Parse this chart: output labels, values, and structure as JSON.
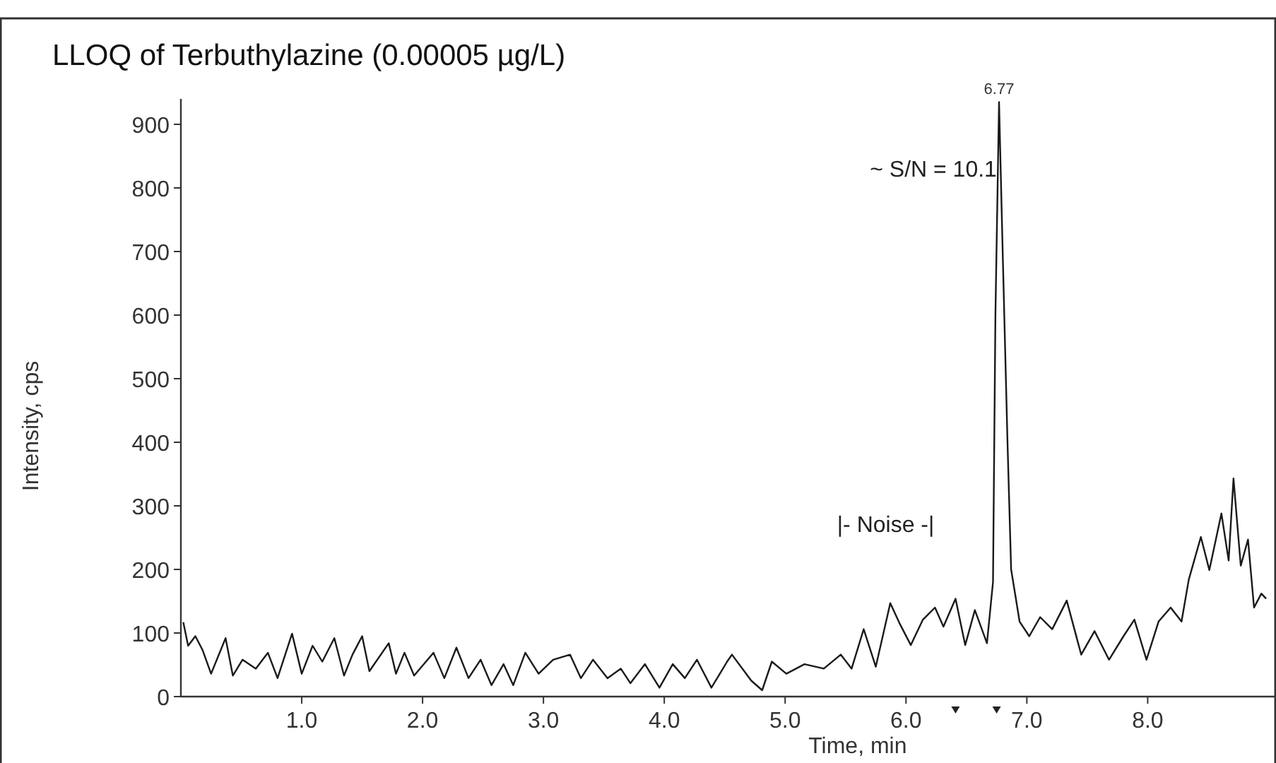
{
  "chart_data": {
    "type": "line",
    "title": "LLOQ of Terbuthylazine (0.00005 µg/L)",
    "xlabel": "Time, min",
    "ylabel": "Intensity, cps",
    "xlim": [
      0,
      9.05
    ],
    "ylim": [
      0,
      940
    ],
    "xticks": [
      {
        "value": 1,
        "label": "1.0"
      },
      {
        "value": 2,
        "label": "2.0"
      },
      {
        "value": 3,
        "label": "3.0"
      },
      {
        "value": 4,
        "label": "4.0"
      },
      {
        "value": 5,
        "label": "5.0"
      },
      {
        "value": 6,
        "label": "6.0"
      },
      {
        "value": 7,
        "label": "7.0"
      },
      {
        "value": 8,
        "label": "8.0"
      }
    ],
    "yticks": [
      0,
      100,
      200,
      300,
      400,
      500,
      600,
      700,
      800,
      900
    ],
    "marker": "none",
    "line_style": "solid",
    "annotations": [
      {
        "text": "6.77",
        "x": 6.77,
        "y": 935
      },
      "~ S/N = 10.1",
      "|- Noise -|"
    ],
    "series": [
      {
        "color": "#1a1a1a",
        "x": [
          0.02,
          0.06,
          0.12,
          0.18,
          0.25,
          0.37,
          0.43,
          0.51,
          0.62,
          0.72,
          0.8,
          0.92,
          1.0,
          1.09,
          1.17,
          1.27,
          1.35,
          1.42,
          1.5,
          1.56,
          1.72,
          1.78,
          1.85,
          1.93,
          2.09,
          2.18,
          2.28,
          2.38,
          2.48,
          2.57,
          2.67,
          2.75,
          2.85,
          2.96,
          3.08,
          3.22,
          3.31,
          3.41,
          3.53,
          3.64,
          3.72,
          3.84,
          3.96,
          4.07,
          4.17,
          4.27,
          4.39,
          4.52,
          4.56,
          4.72,
          4.81,
          4.89,
          5.01,
          5.16,
          5.32,
          5.46,
          5.55,
          5.65,
          5.75,
          5.87,
          5.95,
          6.04,
          6.14,
          6.24,
          6.31,
          6.41,
          6.49,
          6.57,
          6.67,
          6.72,
          6.74,
          6.77,
          6.8,
          6.84,
          6.87,
          6.94,
          7.02,
          7.11,
          7.21,
          7.33,
          7.45,
          7.56,
          7.68,
          7.8,
          7.89,
          7.99,
          8.09,
          8.19,
          8.28,
          8.34,
          8.44,
          8.51,
          8.61,
          8.67,
          8.71,
          8.77,
          8.83,
          8.88,
          8.94,
          8.98
        ],
        "values": [
          117,
          80,
          95,
          73,
          36,
          92,
          33,
          58,
          44,
          69,
          29,
          99,
          36,
          80,
          55,
          92,
          33,
          66,
          95,
          40,
          84,
          36,
          69,
          33,
          69,
          29,
          77,
          29,
          58,
          18,
          51,
          18,
          69,
          36,
          58,
          66,
          29,
          58,
          29,
          44,
          21,
          51,
          14,
          51,
          29,
          58,
          14,
          55,
          66,
          25,
          10,
          55,
          36,
          51,
          44,
          66,
          44,
          106,
          47,
          147,
          114,
          81,
          121,
          140,
          110,
          154,
          81,
          136,
          84,
          180,
          600,
          935,
          700,
          400,
          200,
          118,
          95,
          125,
          106,
          151,
          66,
          103,
          58,
          95,
          121,
          58,
          118,
          140,
          118,
          184,
          251,
          199,
          288,
          214,
          343,
          206,
          247,
          140,
          162,
          154
        ]
      }
    ]
  }
}
